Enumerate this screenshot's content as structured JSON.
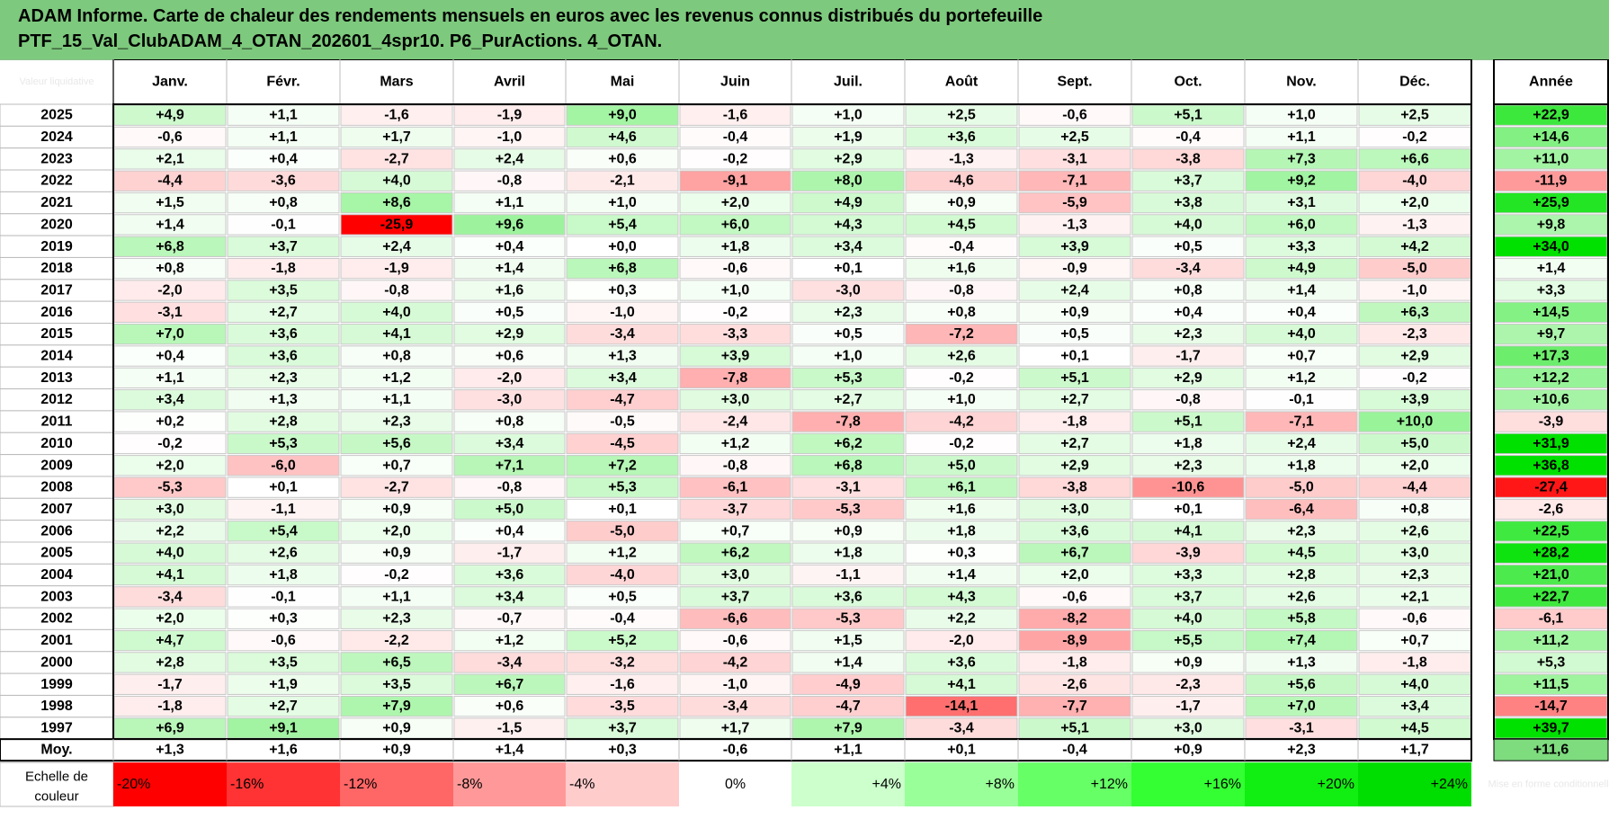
{
  "header": {
    "line1": "ADAM Informe. Carte de chaleur des rendements mensuels en euros avec les revenus connus distribués du portefeuille",
    "line2": "PTF_15_Val_ClubADAM_4_OTAN_202601_4spr10. P6_PurActions. 4_OTAN."
  },
  "chart_data": {
    "type": "heatmap",
    "corner_label": "Valeur liquidative",
    "months": [
      "Janv.",
      "Févr.",
      "Mars",
      "Avril",
      "Mai",
      "Juin",
      "Juil.",
      "Août",
      "Sept.",
      "Oct.",
      "Nov.",
      "Déc."
    ],
    "year_col_label": "Année",
    "rows": [
      {
        "year": "2025",
        "values": [
          "+4,9",
          "+1,1",
          "-1,6",
          "-1,9",
          "+9,0",
          "-1,6",
          "+1,0",
          "+2,5",
          "-0,6",
          "+5,1",
          "+1,0",
          "+2,5"
        ],
        "annual": "+22,9"
      },
      {
        "year": "2024",
        "values": [
          "-0,6",
          "+1,1",
          "+1,7",
          "-1,0",
          "+4,6",
          "-0,4",
          "+1,9",
          "+3,6",
          "+2,5",
          "-0,4",
          "+1,1",
          "-0,2"
        ],
        "annual": "+14,6"
      },
      {
        "year": "2023",
        "values": [
          "+2,1",
          "+0,4",
          "-2,7",
          "+2,4",
          "+0,6",
          "-0,2",
          "+2,9",
          "-1,3",
          "-3,1",
          "-3,8",
          "+7,3",
          "+6,6"
        ],
        "annual": "+11,0"
      },
      {
        "year": "2022",
        "values": [
          "-4,4",
          "-3,6",
          "+4,0",
          "-0,8",
          "-2,1",
          "-9,1",
          "+8,0",
          "-4,6",
          "-7,1",
          "+3,7",
          "+9,2",
          "-4,0"
        ],
        "annual": "-11,9"
      },
      {
        "year": "2021",
        "values": [
          "+1,5",
          "+0,8",
          "+8,6",
          "+1,1",
          "+1,0",
          "+2,0",
          "+4,9",
          "+0,9",
          "-5,9",
          "+3,8",
          "+3,1",
          "+2,0"
        ],
        "annual": "+25,9"
      },
      {
        "year": "2020",
        "values": [
          "+1,4",
          "-0,1",
          "-25,9",
          "+9,6",
          "+5,4",
          "+6,0",
          "+4,3",
          "+4,5",
          "-1,3",
          "+4,0",
          "+6,0",
          "-1,3"
        ],
        "annual": "+9,8"
      },
      {
        "year": "2019",
        "values": [
          "+6,8",
          "+3,7",
          "+2,4",
          "+0,4",
          "+0,0",
          "+1,8",
          "+3,4",
          "-0,4",
          "+3,9",
          "+0,5",
          "+3,3",
          "+4,2"
        ],
        "annual": "+34,0"
      },
      {
        "year": "2018",
        "values": [
          "+0,8",
          "-1,8",
          "-1,9",
          "+1,4",
          "+6,8",
          "-0,6",
          "+0,1",
          "+1,6",
          "-0,9",
          "-3,4",
          "+4,9",
          "-5,0"
        ],
        "annual": "+1,4"
      },
      {
        "year": "2017",
        "values": [
          "-2,0",
          "+3,5",
          "-0,8",
          "+1,6",
          "+0,3",
          "+1,0",
          "-3,0",
          "-0,8",
          "+2,4",
          "+0,8",
          "+1,4",
          "-1,0"
        ],
        "annual": "+3,3"
      },
      {
        "year": "2016",
        "values": [
          "-3,1",
          "+2,7",
          "+4,0",
          "+0,5",
          "-1,0",
          "-0,2",
          "+2,3",
          "+0,8",
          "+0,9",
          "+0,4",
          "+0,4",
          "+6,3"
        ],
        "annual": "+14,5"
      },
      {
        "year": "2015",
        "values": [
          "+7,0",
          "+3,6",
          "+4,1",
          "+2,9",
          "-3,4",
          "-3,3",
          "+0,5",
          "-7,2",
          "+0,5",
          "+2,3",
          "+4,0",
          "-2,3"
        ],
        "annual": "+9,7"
      },
      {
        "year": "2014",
        "values": [
          "+0,4",
          "+3,6",
          "+0,8",
          "+0,6",
          "+1,3",
          "+3,9",
          "+1,0",
          "+2,6",
          "+0,1",
          "-1,7",
          "+0,7",
          "+2,9"
        ],
        "annual": "+17,3"
      },
      {
        "year": "2013",
        "values": [
          "+1,1",
          "+2,3",
          "+1,2",
          "-2,0",
          "+3,4",
          "-7,8",
          "+5,3",
          "-0,2",
          "+5,1",
          "+2,9",
          "+1,2",
          "-0,2"
        ],
        "annual": "+12,2"
      },
      {
        "year": "2012",
        "values": [
          "+3,4",
          "+1,3",
          "+1,1",
          "-3,0",
          "-4,7",
          "+3,0",
          "+2,7",
          "+1,0",
          "+2,7",
          "-0,8",
          "-0,1",
          "+3,9"
        ],
        "annual": "+10,6"
      },
      {
        "year": "2011",
        "values": [
          "+0,2",
          "+2,8",
          "+2,3",
          "+0,8",
          "-0,5",
          "-2,4",
          "-7,8",
          "-4,2",
          "-1,8",
          "+5,1",
          "-7,1",
          "+10,0"
        ],
        "annual": "-3,9"
      },
      {
        "year": "2010",
        "values": [
          "-0,2",
          "+5,3",
          "+5,6",
          "+3,4",
          "-4,5",
          "+1,2",
          "+6,2",
          "-0,2",
          "+2,7",
          "+1,8",
          "+2,4",
          "+5,0"
        ],
        "annual": "+31,9"
      },
      {
        "year": "2009",
        "values": [
          "+2,0",
          "-6,0",
          "+0,7",
          "+7,1",
          "+7,2",
          "-0,8",
          "+6,8",
          "+5,0",
          "+2,9",
          "+2,3",
          "+1,8",
          "+2,0"
        ],
        "annual": "+36,8"
      },
      {
        "year": "2008",
        "values": [
          "-5,3",
          "+0,1",
          "-2,7",
          "-0,8",
          "+5,3",
          "-6,1",
          "-3,1",
          "+6,1",
          "-3,8",
          "-10,6",
          "-5,0",
          "-4,4"
        ],
        "annual": "-27,4"
      },
      {
        "year": "2007",
        "values": [
          "+3,0",
          "-1,1",
          "+0,9",
          "+5,0",
          "+0,1",
          "-3,7",
          "-5,3",
          "+1,6",
          "+3,0",
          "+0,1",
          "-6,4",
          "+0,8"
        ],
        "annual": "-2,6"
      },
      {
        "year": "2006",
        "values": [
          "+2,2",
          "+5,4",
          "+2,0",
          "+0,4",
          "-5,0",
          "+0,7",
          "+0,9",
          "+1,8",
          "+3,6",
          "+4,1",
          "+2,3",
          "+2,6"
        ],
        "annual": "+22,5"
      },
      {
        "year": "2005",
        "values": [
          "+4,0",
          "+2,6",
          "+0,9",
          "-1,7",
          "+1,2",
          "+6,2",
          "+1,8",
          "+0,3",
          "+6,7",
          "-3,9",
          "+4,5",
          "+3,0"
        ],
        "annual": "+28,2"
      },
      {
        "year": "2004",
        "values": [
          "+4,1",
          "+1,8",
          "-0,2",
          "+3,6",
          "-4,0",
          "+3,0",
          "-1,1",
          "+1,4",
          "+2,0",
          "+3,3",
          "+2,8",
          "+2,3"
        ],
        "annual": "+21,0"
      },
      {
        "year": "2003",
        "values": [
          "-3,4",
          "-0,1",
          "+1,1",
          "+3,4",
          "+0,5",
          "+3,7",
          "+3,6",
          "+4,3",
          "-0,6",
          "+3,7",
          "+2,6",
          "+2,1"
        ],
        "annual": "+22,7"
      },
      {
        "year": "2002",
        "values": [
          "+2,0",
          "+0,3",
          "+2,3",
          "-0,7",
          "-0,4",
          "-6,6",
          "-5,3",
          "+2,2",
          "-8,2",
          "+4,0",
          "+5,8",
          "-0,6"
        ],
        "annual": "-6,1"
      },
      {
        "year": "2001",
        "values": [
          "+4,7",
          "-0,6",
          "-2,2",
          "+1,2",
          "+5,2",
          "-0,6",
          "+1,5",
          "-2,0",
          "-8,9",
          "+5,5",
          "+7,4",
          "+0,7"
        ],
        "annual": "+11,2"
      },
      {
        "year": "2000",
        "values": [
          "+2,8",
          "+3,5",
          "+6,5",
          "-3,4",
          "-3,2",
          "-4,2",
          "+1,4",
          "+3,6",
          "-1,8",
          "+0,9",
          "+1,3",
          "-1,8"
        ],
        "annual": "+5,3"
      },
      {
        "year": "1999",
        "values": [
          "-1,7",
          "+1,9",
          "+3,5",
          "+6,7",
          "-1,6",
          "-1,0",
          "-4,9",
          "+4,1",
          "-2,6",
          "-2,3",
          "+5,6",
          "+4,0"
        ],
        "annual": "+11,5"
      },
      {
        "year": "1998",
        "values": [
          "-1,8",
          "+2,7",
          "+7,9",
          "+0,6",
          "-3,5",
          "-3,4",
          "-4,7",
          "-14,1",
          "-7,7",
          "-1,7",
          "+7,0",
          "+3,4"
        ],
        "annual": "-14,7"
      },
      {
        "year": "1997",
        "values": [
          "+6,9",
          "+9,1",
          "+0,9",
          "-1,5",
          "+3,7",
          "+1,7",
          "+7,9",
          "-3,4",
          "+5,1",
          "+3,0",
          "-3,1",
          "+4,5"
        ],
        "annual": "+39,7"
      }
    ],
    "average": {
      "label": "Moy.",
      "values": [
        "+1,3",
        "+1,6",
        "+0,9",
        "+1,4",
        "+0,3",
        "-0,6",
        "+1,1",
        "+0,1",
        "-0,4",
        "+0,9",
        "+2,3",
        "+1,7"
      ],
      "annual": "+11,6"
    },
    "color_scale": {
      "label_line1": "Echelle de",
      "label_line2": "couleur",
      "steps": [
        {
          "label": "-20%",
          "value": -20,
          "color": "#ff0000"
        },
        {
          "label": "-16%",
          "value": -16,
          "color": "#ff3333"
        },
        {
          "label": "-12%",
          "value": -12,
          "color": "#ff6666"
        },
        {
          "label": "-8%",
          "value": -8,
          "color": "#ff9999"
        },
        {
          "label": "-4%",
          "value": -4,
          "color": "#ffcccc"
        },
        {
          "label": "0%",
          "value": 0,
          "color": "#ffffff"
        },
        {
          "label": "+4%",
          "value": 4,
          "color": "#ccffcc"
        },
        {
          "label": "+8%",
          "value": 8,
          "color": "#99ff99"
        },
        {
          "label": "+12%",
          "value": 12,
          "color": "#66ff66"
        },
        {
          "label": "+16%",
          "value": 16,
          "color": "#33ff33"
        },
        {
          "label": "+20%",
          "value": 20,
          "color": "#11ee11"
        },
        {
          "label": "+24%",
          "value": 24,
          "color": "#00dd00"
        }
      ],
      "corner_note": "Mise en forme conditionnelle"
    }
  }
}
